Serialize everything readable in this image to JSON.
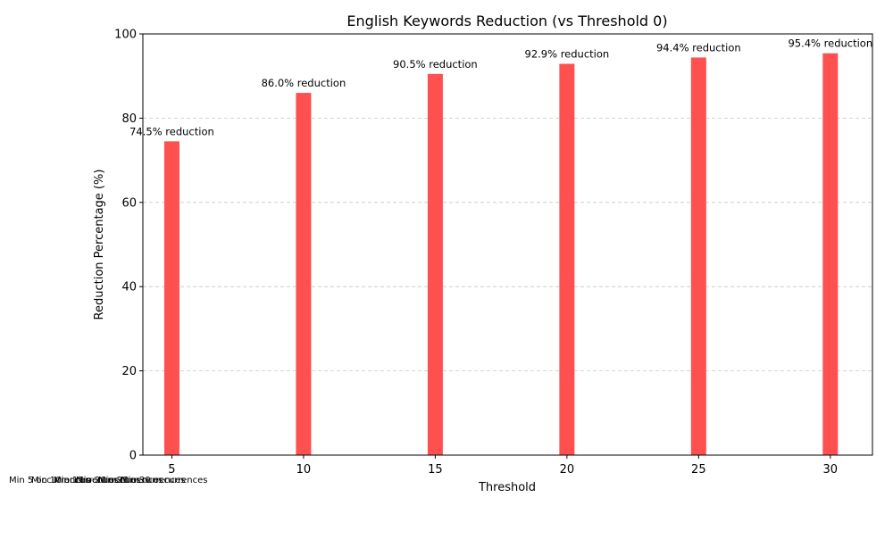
{
  "chart_data": {
    "type": "bar",
    "title": "English Keywords Reduction (vs Threshold 0)",
    "xlabel": "Threshold",
    "ylabel": "Reduction Percentage (%)",
    "categories": [
      5,
      10,
      15,
      20,
      25,
      30
    ],
    "x_ticks": [
      "5",
      "10",
      "15",
      "20",
      "25",
      "30"
    ],
    "y_ticks": [
      "0",
      "20",
      "40",
      "60",
      "80",
      "100"
    ],
    "values": [
      74.5,
      86.0,
      90.5,
      92.9,
      94.4,
      95.4
    ],
    "data_labels": [
      "74.5% reduction",
      "86.0% reduction",
      "90.5% reduction",
      "92.9% reduction",
      "94.4% reduction",
      "95.4% reduction"
    ],
    "annotations": [
      "Min 5 occurrences",
      "Min 10 occurrences",
      "Min 15 occurrences",
      "Min 20 occurrences",
      "Min 25 occurrences",
      "Min 30 occurrences"
    ],
    "xlim": [
      3.9,
      31.6
    ],
    "ylim": [
      0,
      100
    ],
    "grid": "y-dashed",
    "bar_color": "#ff4c4c"
  }
}
